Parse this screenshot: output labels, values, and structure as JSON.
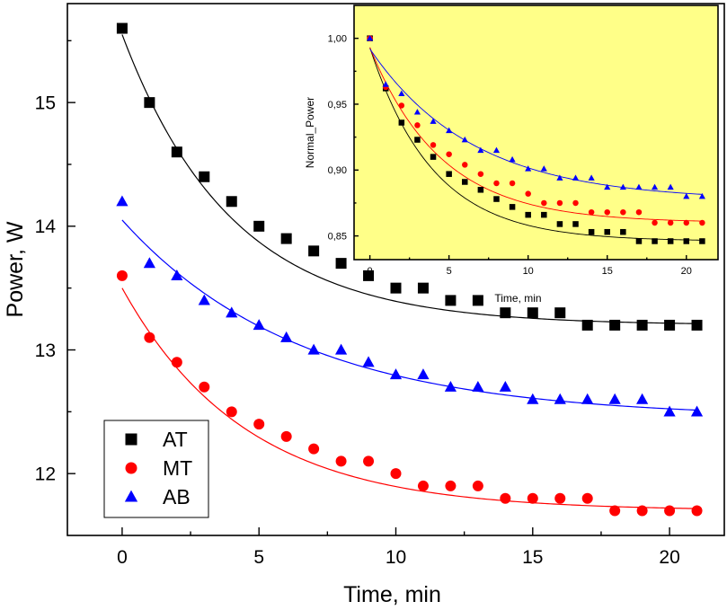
{
  "chart_data": [
    {
      "type": "scatter",
      "xlabel": "Time, min",
      "ylabel": "Power, W",
      "xlim": [
        -2,
        22
      ],
      "ylim": [
        11.5,
        15.8
      ],
      "xticks": [
        0,
        5,
        10,
        15,
        20
      ],
      "xtick_labels": [
        "0",
        "5",
        "10",
        "15",
        "20"
      ],
      "yticks": [
        12,
        13,
        14,
        15
      ],
      "ytick_labels": [
        "12",
        "13",
        "14",
        "15"
      ],
      "legend_position": "bottom-left",
      "series": [
        {
          "name": "AT",
          "marker": "square",
          "color": "#000000",
          "x": [
            0,
            1,
            2,
            3,
            4,
            5,
            6,
            7,
            8,
            9,
            10,
            11,
            12,
            13,
            14,
            15,
            16,
            17,
            18,
            19,
            20,
            21
          ],
          "values": [
            15.6,
            15.0,
            14.6,
            14.4,
            14.2,
            14.0,
            13.9,
            13.8,
            13.7,
            13.6,
            13.5,
            13.5,
            13.4,
            13.4,
            13.3,
            13.3,
            13.3,
            13.2,
            13.2,
            13.2,
            13.2,
            13.2
          ],
          "fit": {
            "y0": 13.2,
            "A": 2.35,
            "tau": 4.0
          }
        },
        {
          "name": "MT",
          "marker": "circle",
          "color": "#ff0000",
          "x": [
            0,
            1,
            2,
            3,
            4,
            5,
            6,
            7,
            8,
            9,
            10,
            11,
            12,
            13,
            14,
            15,
            16,
            17,
            18,
            19,
            20,
            21
          ],
          "values": [
            13.6,
            13.1,
            12.9,
            12.7,
            12.5,
            12.4,
            12.3,
            12.2,
            12.1,
            12.1,
            12.0,
            11.9,
            11.9,
            11.9,
            11.8,
            11.8,
            11.8,
            11.8,
            11.7,
            11.7,
            11.7,
            11.7
          ],
          "fit": {
            "y0": 11.7,
            "A": 1.8,
            "tau": 4.5
          }
        },
        {
          "name": "AB",
          "marker": "triangle",
          "color": "#0000ff",
          "x": [
            0,
            1,
            2,
            3,
            4,
            5,
            6,
            7,
            8,
            9,
            10,
            11,
            12,
            13,
            14,
            15,
            16,
            17,
            18,
            19,
            20,
            21
          ],
          "values": [
            14.2,
            13.7,
            13.6,
            13.4,
            13.3,
            13.2,
            13.1,
            13.0,
            13.0,
            12.9,
            12.8,
            12.8,
            12.7,
            12.7,
            12.7,
            12.6,
            12.6,
            12.6,
            12.6,
            12.6,
            12.5,
            12.5
          ],
          "fit": {
            "y0": 12.45,
            "A": 1.6,
            "tau": 6.5
          }
        }
      ]
    },
    {
      "type": "scatter",
      "name": "inset",
      "background": "#ffff88",
      "xlabel": "Time, min",
      "ylabel": "Normal_Power",
      "xlim": [
        -1,
        22
      ],
      "ylim": [
        0.832,
        1.025
      ],
      "xticks": [
        0,
        5,
        10,
        15,
        20
      ],
      "xtick_labels": [
        "0",
        "5",
        "10",
        "15",
        "20"
      ],
      "yticks": [
        0.85,
        0.9,
        0.95,
        1.0
      ],
      "ytick_labels": [
        "0,85",
        "0,90",
        "0,95",
        "1,00"
      ],
      "series": [
        {
          "name": "AT",
          "marker": "square",
          "color": "#000000",
          "x": [
            0,
            1,
            2,
            3,
            4,
            5,
            6,
            7,
            8,
            9,
            10,
            11,
            12,
            13,
            14,
            15,
            16,
            17,
            18,
            19,
            20,
            21
          ],
          "values": [
            1.0,
            0.962,
            0.936,
            0.923,
            0.91,
            0.897,
            0.891,
            0.885,
            0.878,
            0.872,
            0.866,
            0.866,
            0.859,
            0.859,
            0.853,
            0.853,
            0.853,
            0.846,
            0.846,
            0.846,
            0.846,
            0.846
          ],
          "fit": {
            "y0": 0.846,
            "A": 0.147,
            "tau": 4.0
          }
        },
        {
          "name": "MT",
          "marker": "circle",
          "color": "#ff0000",
          "x": [
            0,
            1,
            2,
            3,
            4,
            5,
            6,
            7,
            8,
            9,
            10,
            11,
            12,
            13,
            14,
            15,
            16,
            17,
            18,
            19,
            20,
            21
          ],
          "values": [
            1.0,
            0.963,
            0.949,
            0.934,
            0.919,
            0.912,
            0.904,
            0.897,
            0.89,
            0.89,
            0.882,
            0.875,
            0.875,
            0.875,
            0.868,
            0.868,
            0.868,
            0.868,
            0.86,
            0.86,
            0.86,
            0.86
          ],
          "fit": {
            "y0": 0.86,
            "A": 0.133,
            "tau": 4.5
          }
        },
        {
          "name": "AB",
          "marker": "triangle",
          "color": "#0000ff",
          "x": [
            0,
            1,
            2,
            3,
            4,
            5,
            6,
            7,
            8,
            9,
            10,
            11,
            12,
            13,
            14,
            15,
            16,
            17,
            18,
            19,
            20,
            21
          ],
          "values": [
            1.0,
            0.965,
            0.958,
            0.944,
            0.937,
            0.93,
            0.923,
            0.915,
            0.915,
            0.908,
            0.901,
            0.901,
            0.894,
            0.894,
            0.894,
            0.887,
            0.887,
            0.887,
            0.887,
            0.887,
            0.88,
            0.88
          ],
          "fit": {
            "y0": 0.877,
            "A": 0.115,
            "tau": 6.5
          }
        }
      ]
    }
  ]
}
